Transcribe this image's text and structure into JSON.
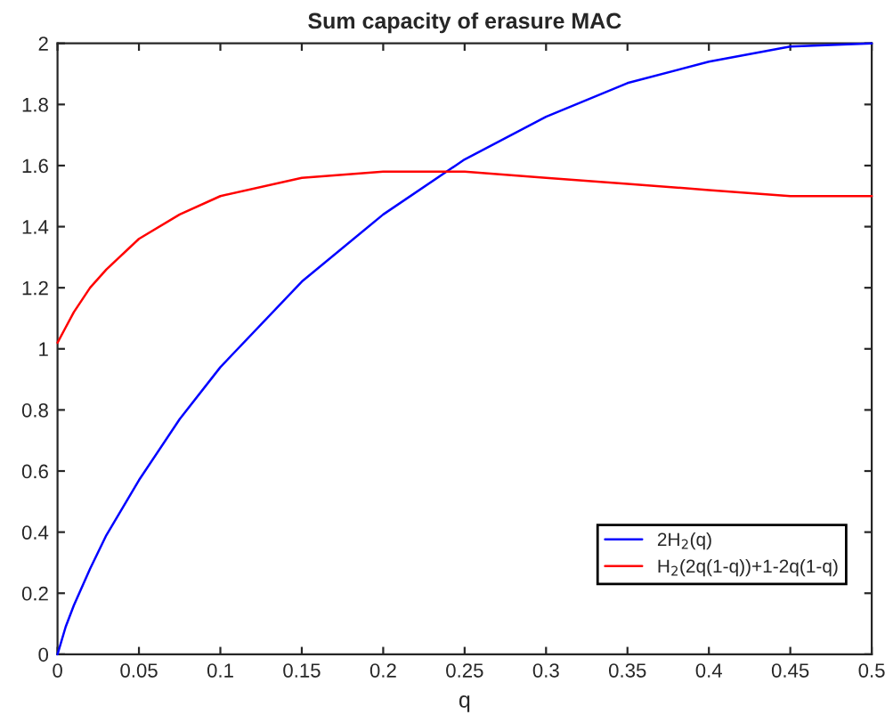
{
  "chart_data": {
    "type": "line",
    "title": "Sum capacity of erasure MAC",
    "xlabel": "q",
    "x": [
      0,
      0.005,
      0.01,
      0.02,
      0.03,
      0.05,
      0.075,
      0.1,
      0.15,
      0.2,
      0.25,
      0.3,
      0.35,
      0.4,
      0.45,
      0.5
    ],
    "series": [
      {
        "name": "2H$_{2}$(q)",
        "color": "#0000ff",
        "values": [
          0,
          0.09,
          0.16,
          0.28,
          0.39,
          0.57,
          0.77,
          0.94,
          1.22,
          1.44,
          1.62,
          1.76,
          1.87,
          1.94,
          1.99,
          2
        ]
      },
      {
        "name": "H$_{2}$(2q(1-q))+1-2q(1-q)",
        "color": "#ff0000",
        "values": [
          1.02,
          1.07,
          1.12,
          1.2,
          1.26,
          1.36,
          1.44,
          1.5,
          1.56,
          1.58,
          1.58,
          1.56,
          1.54,
          1.52,
          1.5,
          1.5
        ]
      }
    ],
    "xlim": [
      0,
      0.5
    ],
    "xticks": [
      0,
      0.05,
      0.1,
      0.15,
      0.2,
      0.25,
      0.3,
      0.35,
      0.4,
      0.45,
      0.5
    ],
    "ylim": [
      0,
      2
    ],
    "yticks": [
      0,
      0.2,
      0.4,
      0.6,
      0.8,
      1,
      1.2,
      1.4,
      1.6,
      1.8,
      2
    ],
    "grid": false,
    "legend": "bottom right",
    "marker": "none",
    "line_style": "solid"
  }
}
